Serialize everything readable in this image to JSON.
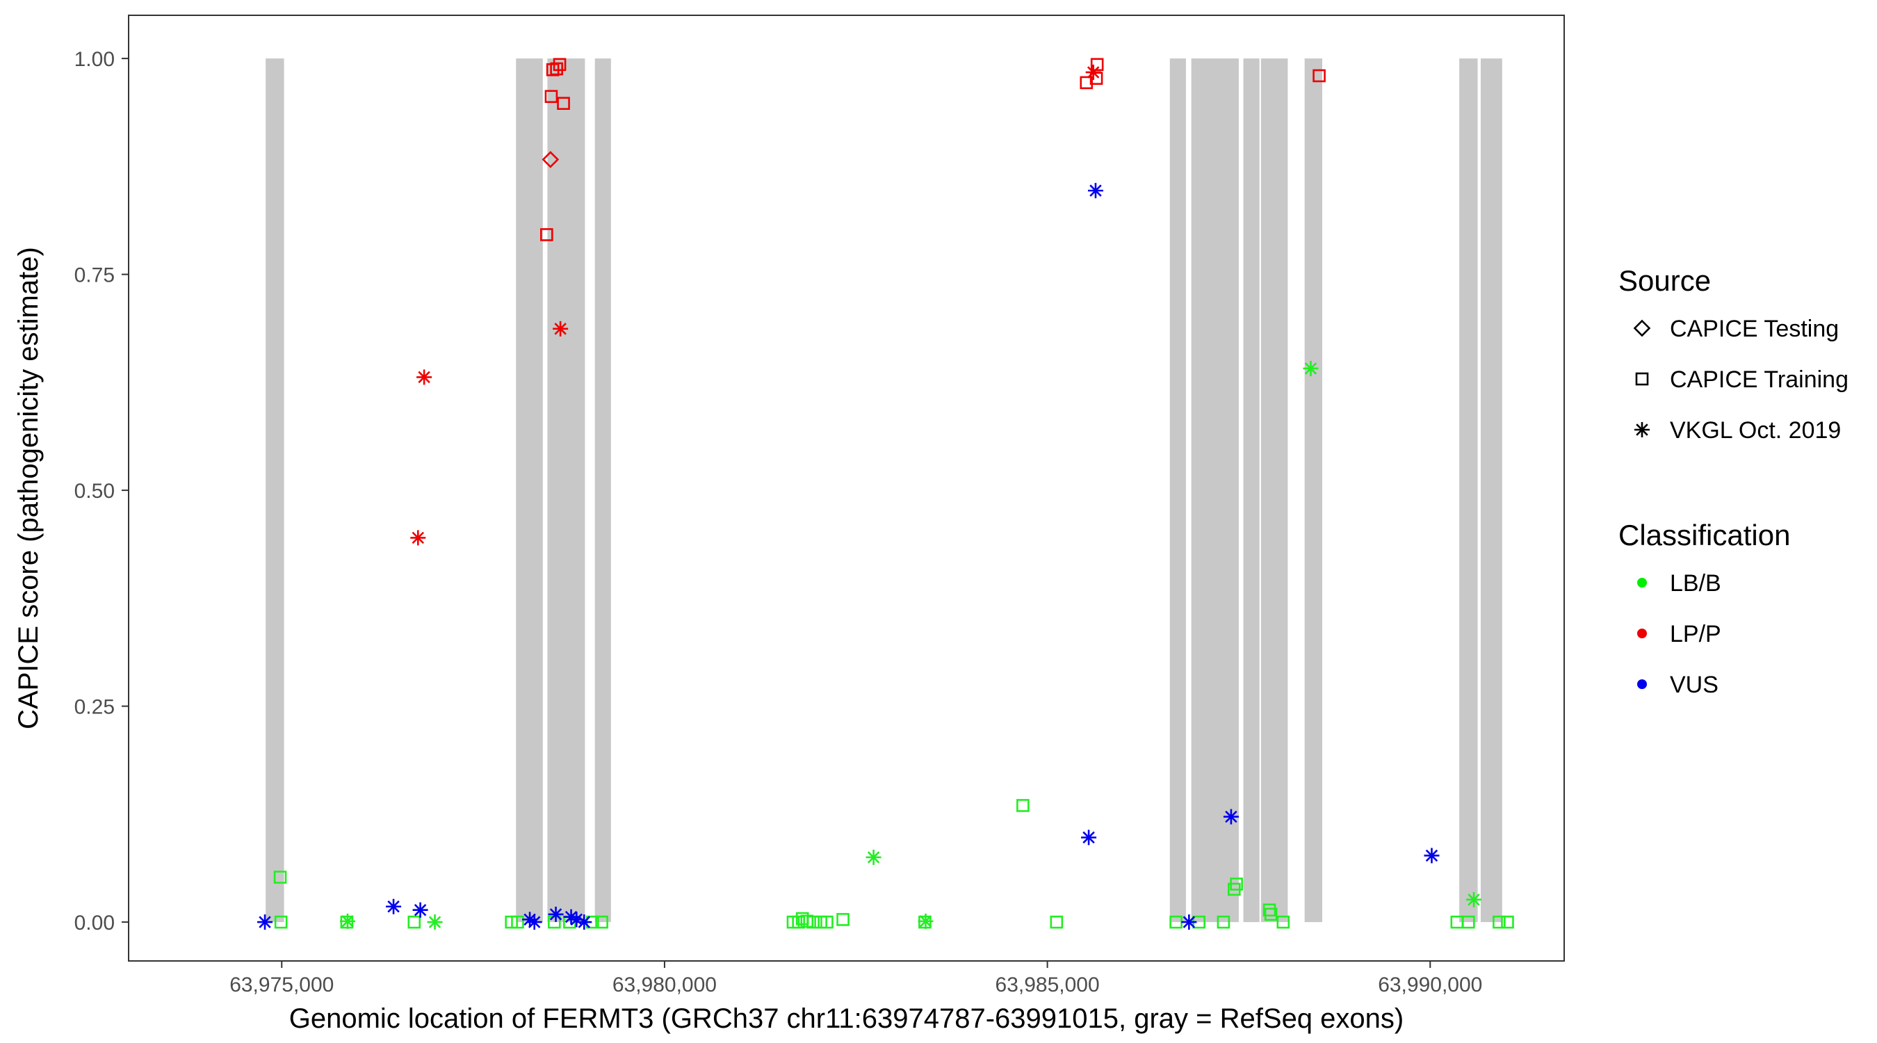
{
  "chart_data": {
    "type": "scatter",
    "xlabel": "Genomic location of FERMT3 (GRCh37 chr11:63974787-63991015, gray = RefSeq exons)",
    "ylabel": "CAPICE score (pathogenicity estimate)",
    "xlim": [
      63973000,
      63991750
    ],
    "ylim": [
      -0.045,
      1.05
    ],
    "x_ticks": [
      63975000,
      63980000,
      63985000,
      63990000
    ],
    "x_tick_labels": [
      "63,975,000",
      "63,980,000",
      "63,985,000",
      "63,990,000"
    ],
    "y_ticks": [
      0,
      0.25,
      0.5,
      0.75,
      1.0
    ],
    "y_tick_labels": [
      "0.00",
      "0.25",
      "0.50",
      "0.75",
      "1.00"
    ],
    "grid": false,
    "exon_color": "#c8c8c8",
    "exons": [
      {
        "start": 63974790,
        "end": 63975030,
        "top": 1.0
      },
      {
        "start": 63978060,
        "end": 63978410,
        "top": 1.0
      },
      {
        "start": 63978470,
        "end": 63978960,
        "top": 1.0
      },
      {
        "start": 63979090,
        "end": 63979300,
        "top": 1.0
      },
      {
        "start": 63986600,
        "end": 63986810,
        "top": 1.0
      },
      {
        "start": 63986880,
        "end": 63987500,
        "top": 1.0
      },
      {
        "start": 63987560,
        "end": 63987770,
        "top": 1.0
      },
      {
        "start": 63987790,
        "end": 63988140,
        "top": 1.0
      },
      {
        "start": 63988360,
        "end": 63988590,
        "top": 1.0
      },
      {
        "start": 63990380,
        "end": 63990620,
        "top": 1.0
      },
      {
        "start": 63990660,
        "end": 63990940,
        "top": 1.0
      }
    ],
    "legend": {
      "position": "right",
      "source": {
        "title": "Source",
        "items": [
          {
            "label": "CAPICE Testing",
            "shape": "diamond"
          },
          {
            "label": "CAPICE Training",
            "shape": "square"
          },
          {
            "label": "VKGL Oct. 2019",
            "shape": "asterisk"
          }
        ]
      },
      "classification": {
        "title": "Classification",
        "items": [
          {
            "label": "LB/B",
            "color": "#00ee00"
          },
          {
            "label": "LP/P",
            "color": "#ee0000"
          },
          {
            "label": "VUS",
            "color": "#0000ee"
          }
        ]
      }
    },
    "colors": {
      "LB/B": "#22ee22",
      "LP/P": "#ee0000",
      "VUS": "#0000ee"
    },
    "points": [
      {
        "x": 63974980,
        "y": 0.052,
        "source": "CAPICE Training",
        "class": "LB/B"
      },
      {
        "x": 63974990,
        "y": 0.0,
        "source": "CAPICE Training",
        "class": "LB/B"
      },
      {
        "x": 63975850,
        "y": 0.0,
        "source": "CAPICE Training",
        "class": "LB/B"
      },
      {
        "x": 63975860,
        "y": 0.001,
        "source": "VKGL Oct. 2019",
        "class": "LB/B"
      },
      {
        "x": 63976730,
        "y": 0.0,
        "source": "CAPICE Training",
        "class": "LB/B"
      },
      {
        "x": 63977000,
        "y": 0.0,
        "source": "VKGL Oct. 2019",
        "class": "LB/B"
      },
      {
        "x": 63978000,
        "y": 0.0,
        "source": "CAPICE Training",
        "class": "LB/B"
      },
      {
        "x": 63978080,
        "y": 0.0,
        "source": "CAPICE Training",
        "class": "LB/B"
      },
      {
        "x": 63978560,
        "y": 0.0,
        "source": "CAPICE Training",
        "class": "LB/B"
      },
      {
        "x": 63978760,
        "y": 0.0,
        "source": "CAPICE Training",
        "class": "LB/B"
      },
      {
        "x": 63979060,
        "y": 0.0,
        "source": "CAPICE Training",
        "class": "LB/B"
      },
      {
        "x": 63979180,
        "y": 0.0,
        "source": "CAPICE Training",
        "class": "LB/B"
      },
      {
        "x": 63981680,
        "y": 0.0,
        "source": "CAPICE Training",
        "class": "LB/B"
      },
      {
        "x": 63981750,
        "y": 0.0,
        "source": "CAPICE Training",
        "class": "LB/B"
      },
      {
        "x": 63981800,
        "y": 0.004,
        "source": "CAPICE Training",
        "class": "LB/B"
      },
      {
        "x": 63981860,
        "y": 0.001,
        "source": "CAPICE Training",
        "class": "LB/B"
      },
      {
        "x": 63981940,
        "y": 0.0,
        "source": "CAPICE Training",
        "class": "LB/B"
      },
      {
        "x": 63982040,
        "y": 0.0,
        "source": "CAPICE Training",
        "class": "LB/B"
      },
      {
        "x": 63982120,
        "y": 0.0,
        "source": "CAPICE Training",
        "class": "LB/B"
      },
      {
        "x": 63982330,
        "y": 0.003,
        "source": "CAPICE Training",
        "class": "LB/B"
      },
      {
        "x": 63982730,
        "y": 0.075,
        "source": "VKGL Oct. 2019",
        "class": "LB/B"
      },
      {
        "x": 63983400,
        "y": 0.0,
        "source": "CAPICE Training",
        "class": "LB/B"
      },
      {
        "x": 63983410,
        "y": 0.001,
        "source": "VKGL Oct. 2019",
        "class": "LB/B"
      },
      {
        "x": 63984680,
        "y": 0.135,
        "source": "CAPICE Training",
        "class": "LB/B"
      },
      {
        "x": 63985120,
        "y": 0.0,
        "source": "CAPICE Training",
        "class": "LB/B"
      },
      {
        "x": 63986680,
        "y": 0.0,
        "source": "CAPICE Training",
        "class": "LB/B"
      },
      {
        "x": 63986980,
        "y": 0.0,
        "source": "CAPICE Training",
        "class": "LB/B"
      },
      {
        "x": 63987300,
        "y": 0.0,
        "source": "CAPICE Training",
        "class": "LB/B"
      },
      {
        "x": 63987440,
        "y": 0.038,
        "source": "CAPICE Training",
        "class": "LB/B"
      },
      {
        "x": 63987470,
        "y": 0.044,
        "source": "CAPICE Training",
        "class": "LB/B"
      },
      {
        "x": 63987900,
        "y": 0.014,
        "source": "CAPICE Training",
        "class": "LB/B"
      },
      {
        "x": 63987920,
        "y": 0.009,
        "source": "CAPICE Training",
        "class": "LB/B"
      },
      {
        "x": 63988080,
        "y": 0.0,
        "source": "CAPICE Training",
        "class": "LB/B"
      },
      {
        "x": 63988440,
        "y": 0.641,
        "source": "VKGL Oct. 2019",
        "class": "LB/B"
      },
      {
        "x": 63990350,
        "y": 0.0,
        "source": "CAPICE Training",
        "class": "LB/B"
      },
      {
        "x": 63990500,
        "y": 0.0,
        "source": "CAPICE Training",
        "class": "LB/B"
      },
      {
        "x": 63990570,
        "y": 0.026,
        "source": "VKGL Oct. 2019",
        "class": "LB/B"
      },
      {
        "x": 63990900,
        "y": 0.0,
        "source": "CAPICE Training",
        "class": "LB/B"
      },
      {
        "x": 63991010,
        "y": 0.0,
        "source": "CAPICE Training",
        "class": "LB/B"
      },
      {
        "x": 63976780,
        "y": 0.445,
        "source": "VKGL Oct. 2019",
        "class": "LP/P"
      },
      {
        "x": 63976860,
        "y": 0.631,
        "source": "VKGL Oct. 2019",
        "class": "LP/P"
      },
      {
        "x": 63978460,
        "y": 0.796,
        "source": "CAPICE Training",
        "class": "LP/P"
      },
      {
        "x": 63978510,
        "y": 0.883,
        "source": "CAPICE Testing",
        "class": "LP/P"
      },
      {
        "x": 63978520,
        "y": 0.956,
        "source": "CAPICE Training",
        "class": "LP/P"
      },
      {
        "x": 63978540,
        "y": 0.987,
        "source": "CAPICE Training",
        "class": "LP/P"
      },
      {
        "x": 63978590,
        "y": 0.988,
        "source": "CAPICE Training",
        "class": "LP/P"
      },
      {
        "x": 63978630,
        "y": 0.993,
        "source": "CAPICE Training",
        "class": "LP/P"
      },
      {
        "x": 63978640,
        "y": 0.687,
        "source": "VKGL Oct. 2019",
        "class": "LP/P"
      },
      {
        "x": 63978680,
        "y": 0.948,
        "source": "CAPICE Training",
        "class": "LP/P"
      },
      {
        "x": 63985510,
        "y": 0.972,
        "source": "CAPICE Training",
        "class": "LP/P"
      },
      {
        "x": 63985600,
        "y": 0.984,
        "source": "VKGL Oct. 2019",
        "class": "LP/P"
      },
      {
        "x": 63985640,
        "y": 0.977,
        "source": "CAPICE Training",
        "class": "LP/P"
      },
      {
        "x": 63985650,
        "y": 0.993,
        "source": "CAPICE Training",
        "class": "LP/P"
      },
      {
        "x": 63988550,
        "y": 0.98,
        "source": "CAPICE Training",
        "class": "LP/P"
      },
      {
        "x": 63974780,
        "y": 0.0,
        "source": "VKGL Oct. 2019",
        "class": "VUS"
      },
      {
        "x": 63976460,
        "y": 0.018,
        "source": "VKGL Oct. 2019",
        "class": "VUS"
      },
      {
        "x": 63976810,
        "y": 0.014,
        "source": "VKGL Oct. 2019",
        "class": "VUS"
      },
      {
        "x": 63978240,
        "y": 0.003,
        "source": "VKGL Oct. 2019",
        "class": "VUS"
      },
      {
        "x": 63978300,
        "y": 0.0,
        "source": "VKGL Oct. 2019",
        "class": "VUS"
      },
      {
        "x": 63978580,
        "y": 0.009,
        "source": "VKGL Oct. 2019",
        "class": "VUS"
      },
      {
        "x": 63978780,
        "y": 0.006,
        "source": "VKGL Oct. 2019",
        "class": "VUS"
      },
      {
        "x": 63978850,
        "y": 0.003,
        "source": "VKGL Oct. 2019",
        "class": "VUS"
      },
      {
        "x": 63978950,
        "y": 0.0,
        "source": "VKGL Oct. 2019",
        "class": "VUS"
      },
      {
        "x": 63985540,
        "y": 0.098,
        "source": "VKGL Oct. 2019",
        "class": "VUS"
      },
      {
        "x": 63985630,
        "y": 0.847,
        "source": "VKGL Oct. 2019",
        "class": "VUS"
      },
      {
        "x": 63986850,
        "y": 0.0,
        "source": "VKGL Oct. 2019",
        "class": "VUS"
      },
      {
        "x": 63987400,
        "y": 0.122,
        "source": "VKGL Oct. 2019",
        "class": "VUS"
      },
      {
        "x": 63990020,
        "y": 0.077,
        "source": "VKGL Oct. 2019",
        "class": "VUS"
      }
    ]
  }
}
